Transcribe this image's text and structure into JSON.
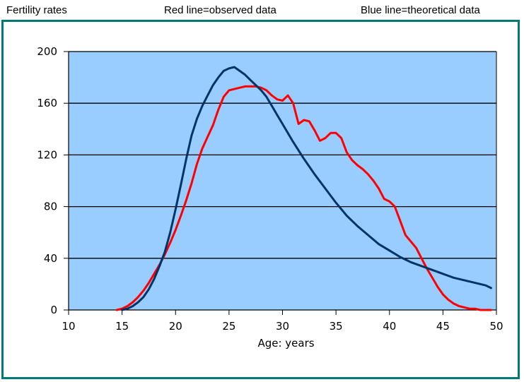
{
  "header": {
    "left": "Fertility rates",
    "middle": "Red  line=observed data",
    "right": "Blue line=theoretical data"
  },
  "colors": {
    "frame": "#007a78",
    "plot_bg": "#99ccff",
    "observed": "#ff0000",
    "theoretical": "#003366"
  },
  "chart_data": {
    "type": "line",
    "title": "",
    "xlabel": "Age: years",
    "ylabel": "",
    "xlim": [
      10,
      50
    ],
    "ylim": [
      0,
      200
    ],
    "xticks": [
      10,
      15,
      20,
      25,
      30,
      35,
      40,
      45,
      50
    ],
    "yticks": [
      0,
      40,
      80,
      120,
      160,
      200
    ],
    "grid": "horizontal",
    "legend": "none",
    "series": [
      {
        "color": "#ff0000",
        "x": [
          14.5,
          15,
          15.5,
          16,
          16.5,
          17,
          17.5,
          18,
          18.5,
          19,
          19.5,
          20,
          20.5,
          21,
          21.5,
          22,
          22.5,
          23,
          23.5,
          24,
          24.5,
          25,
          25.5,
          26,
          26.5,
          27,
          27.5,
          28,
          28.5,
          29,
          29.5,
          30,
          30.5,
          31,
          31.5,
          32,
          32.5,
          33,
          33.5,
          34,
          34.5,
          35,
          35.5,
          36,
          36.5,
          37,
          37.5,
          38,
          38.5,
          39,
          39.5,
          40,
          40.5,
          41,
          41.5,
          42,
          42.5,
          43,
          43.5,
          44,
          44.5,
          45,
          45.5,
          46,
          46.5,
          47,
          47.5,
          48,
          48.5,
          49,
          49.5
        ],
        "y": [
          0,
          1,
          3,
          6,
          10,
          15,
          21,
          28,
          35,
          43,
          52,
          62,
          73,
          85,
          98,
          113,
          125,
          134,
          143,
          155,
          165,
          170,
          171,
          172,
          173,
          173,
          173,
          172,
          170,
          166,
          163,
          162,
          166,
          160,
          144,
          147,
          146,
          139,
          131,
          133,
          137,
          137,
          133,
          122,
          116,
          112,
          109,
          105,
          100,
          94,
          86,
          84,
          80,
          69,
          58,
          53,
          48,
          40,
          32,
          25,
          18,
          12,
          8,
          5,
          3,
          2,
          1,
          1,
          0,
          0,
          0
        ]
      },
      {
        "color": "#003366",
        "x": [
          15,
          15.5,
          16,
          16.5,
          17,
          17.5,
          18,
          18.5,
          19,
          19.5,
          20,
          20.5,
          21,
          21.5,
          22,
          22.5,
          23,
          23.5,
          24,
          24.5,
          25,
          25.5,
          26,
          26.5,
          27,
          27.5,
          28,
          28.5,
          29,
          29.5,
          30,
          31,
          32,
          33,
          34,
          35,
          36,
          37,
          38,
          39,
          40,
          41,
          42,
          43,
          44,
          45,
          46,
          47,
          48,
          49,
          49.5
        ],
        "y": [
          0,
          1,
          3,
          6,
          10,
          16,
          24,
          34,
          45,
          60,
          78,
          97,
          117,
          135,
          148,
          158,
          166,
          174,
          180,
          185,
          187,
          188,
          185,
          182,
          178,
          174,
          170,
          165,
          158,
          151,
          144,
          130,
          117,
          105,
          94,
          83,
          73,
          65,
          58,
          51,
          46,
          41,
          37,
          34,
          31,
          28,
          25,
          23,
          21,
          19,
          17
        ]
      }
    ]
  }
}
